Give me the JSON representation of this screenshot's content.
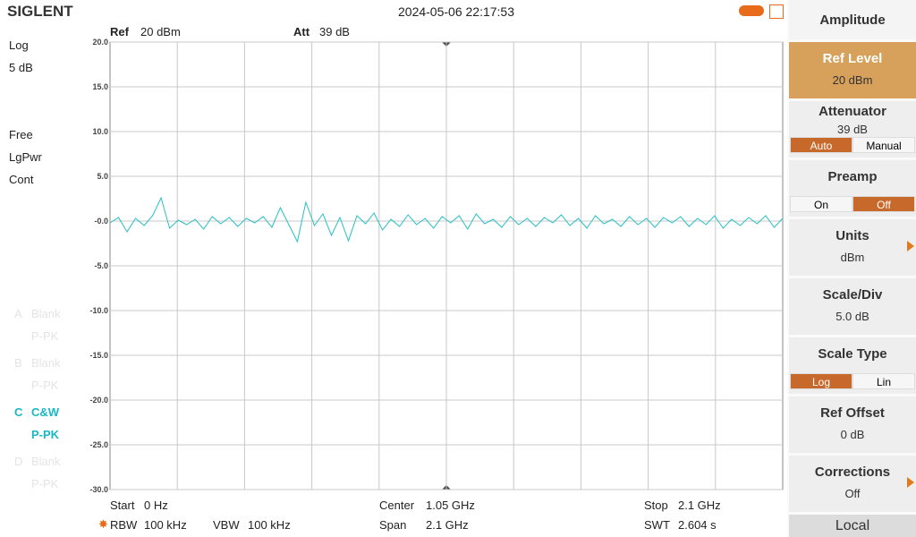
{
  "header": {
    "brand": "SIGLENT",
    "datetime": "2024-05-06 22:17:53"
  },
  "plot": {
    "ref_label": "Ref",
    "ref_value": "20 dBm",
    "att_label": "Att",
    "att_value": "39 dB",
    "ylim": [
      -30,
      20
    ],
    "yticks": [
      {
        "value": 20,
        "label": "20.0"
      },
      {
        "value": 15,
        "label": "15.0"
      },
      {
        "value": 10,
        "label": "10.0"
      },
      {
        "value": 5,
        "label": "5.0"
      },
      {
        "value": 0,
        "label": "-0.0"
      },
      {
        "value": -5,
        "label": "-5.0"
      },
      {
        "value": -10,
        "label": "-10.0"
      },
      {
        "value": -15,
        "label": "-15.0"
      },
      {
        "value": -20,
        "label": "-20.0"
      },
      {
        "value": -25,
        "label": "-25.0"
      },
      {
        "value": -30,
        "label": "-30.0"
      }
    ],
    "trace": {
      "color": "#25c0c4",
      "values": [
        -0.2,
        0.4,
        -1.2,
        0.3,
        -0.5,
        0.6,
        2.6,
        -0.8,
        0.1,
        -0.4,
        0.2,
        -0.9,
        0.5,
        -0.3,
        0.4,
        -0.6,
        0.3,
        -0.2,
        0.5,
        -0.7,
        1.5,
        -0.4,
        -2.3,
        2.1,
        -0.5,
        0.8,
        -1.6,
        0.4,
        -2.2,
        0.6,
        -0.3,
        0.9,
        -1.0,
        0.2,
        -0.6,
        0.7,
        -0.4,
        0.3,
        -0.8,
        0.5,
        -0.2,
        0.6,
        -0.9,
        0.8,
        -0.3,
        0.2,
        -0.7,
        0.5,
        -0.4,
        0.3,
        -0.6,
        0.4,
        -0.2,
        0.7,
        -0.5,
        0.3,
        -0.8,
        0.6,
        -0.3,
        0.2,
        -0.6,
        0.5,
        -0.4,
        0.3,
        -0.7,
        0.4,
        -0.2,
        0.5,
        -0.6,
        0.3,
        -0.4,
        0.6,
        -0.8,
        0.2,
        -0.5,
        0.4,
        -0.3,
        0.6,
        -0.7,
        0.3
      ]
    }
  },
  "left_panel": {
    "scale": "Log",
    "div": "5 dB",
    "trig": "Free",
    "mode": "LgPwr",
    "sweep": "Cont",
    "traces": [
      {
        "id": "A",
        "state": "Blank",
        "detector": "P-PK"
      },
      {
        "id": "B",
        "state": "Blank",
        "detector": "P-PK"
      },
      {
        "id": "C",
        "state": "C&W",
        "detector": "P-PK"
      },
      {
        "id": "D",
        "state": "Blank",
        "detector": "P-PK"
      }
    ]
  },
  "footer": {
    "start": "Start",
    "start_value": "0 Hz",
    "center": "Center",
    "center_value": "1.05 GHz",
    "stop": "Stop",
    "stop_value": "2.1 GHz",
    "rbw": "RBW",
    "rbw_value": "100 kHz",
    "vbw": "VBW",
    "vbw_value": "100 kHz",
    "span": "Span",
    "span_value": "2.1 GHz",
    "swt": "SWT",
    "swt_value": "2.604 s"
  },
  "menu": {
    "title": "Amplitude",
    "ref_level": "Ref Level",
    "ref_level_value": "20 dBm",
    "attenuator": "Attenuator",
    "attenuator_value": "39 dB",
    "auto": "Auto",
    "manual": "Manual",
    "preamp": "Preamp",
    "on": "On",
    "off": "Off",
    "units": "Units",
    "units_value": "dBm",
    "scale_div": "Scale/Div",
    "scale_div_value": "5.0 dB",
    "scale_type": "Scale Type",
    "log": "Log",
    "lin": "Lin",
    "ref_offset": "Ref Offset",
    "ref_offset_value": "0 dB",
    "corrections": "Corrections",
    "corrections_value": "Off",
    "local": "Local"
  }
}
